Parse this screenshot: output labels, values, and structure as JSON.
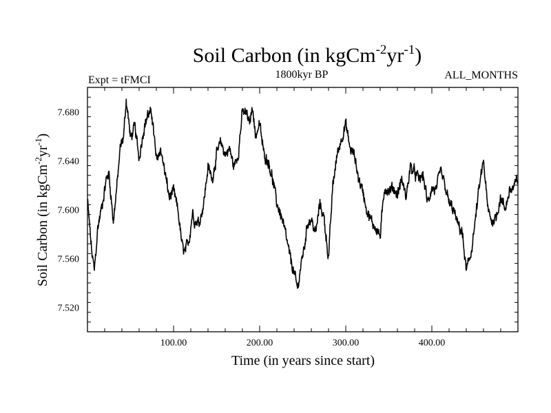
{
  "chart_data": {
    "type": "line",
    "title": "Soil Carbon (in kgCm",
    "title_sup1": "-2",
    "title_mid": "yr",
    "title_sup2": "-1",
    "title_end": ")",
    "subtitle_left": "Expt = tFMCI",
    "subtitle_center": "1800kyr BP",
    "subtitle_right": "ALL_MONTHS",
    "xlabel": "Time (in years since start)",
    "ylabel": "Soil Carbon (in kgCm",
    "ylabel_sup1": "-2",
    "ylabel_mid": "yr",
    "ylabel_sup2": "-1",
    "ylabel_end": ")",
    "xlim": [
      0,
      500
    ],
    "ylim": [
      7.5,
      7.7
    ],
    "x_major_ticks": [
      100,
      200,
      300,
      400
    ],
    "x_tick_labels": [
      "100.00",
      "200.00",
      "300.00",
      "400.00"
    ],
    "y_major_ticks": [
      7.52,
      7.56,
      7.6,
      7.64,
      7.68
    ],
    "y_tick_labels": [
      "7.520",
      "7.560",
      "7.600",
      "7.640",
      "7.680"
    ],
    "series": [
      {
        "name": "Soil Carbon",
        "color": "#000000",
        "x": [
          0,
          5,
          8,
          12,
          18,
          22,
          25,
          30,
          35,
          38,
          42,
          45,
          48,
          50,
          55,
          60,
          65,
          70,
          75,
          80,
          85,
          90,
          95,
          100,
          105,
          110,
          113,
          118,
          122,
          125,
          130,
          135,
          140,
          145,
          150,
          155,
          160,
          165,
          170,
          175,
          180,
          185,
          188,
          192,
          195,
          200,
          205,
          210,
          215,
          220,
          225,
          230,
          235,
          240,
          244,
          248,
          252,
          256,
          260,
          265,
          270,
          275,
          280,
          285,
          290,
          295,
          300,
          305,
          310,
          315,
          320,
          325,
          330,
          335,
          340,
          345,
          350,
          355,
          360,
          365,
          370,
          375,
          380,
          385,
          390,
          395,
          400,
          405,
          410,
          415,
          420,
          425,
          430,
          435,
          440,
          445,
          450,
          455,
          460,
          465,
          470,
          475,
          480,
          485,
          490,
          495,
          500
        ],
        "y": [
          7.608,
          7.565,
          7.55,
          7.585,
          7.608,
          7.625,
          7.63,
          7.59,
          7.625,
          7.65,
          7.66,
          7.69,
          7.672,
          7.658,
          7.668,
          7.642,
          7.665,
          7.678,
          7.678,
          7.64,
          7.65,
          7.63,
          7.61,
          7.615,
          7.6,
          7.57,
          7.565,
          7.575,
          7.598,
          7.59,
          7.59,
          7.605,
          7.635,
          7.625,
          7.645,
          7.655,
          7.645,
          7.65,
          7.635,
          7.645,
          7.68,
          7.678,
          7.67,
          7.685,
          7.66,
          7.67,
          7.645,
          7.64,
          7.625,
          7.605,
          7.595,
          7.58,
          7.562,
          7.548,
          7.535,
          7.555,
          7.57,
          7.59,
          7.592,
          7.58,
          7.605,
          7.592,
          7.56,
          7.62,
          7.645,
          7.658,
          7.67,
          7.65,
          7.645,
          7.625,
          7.615,
          7.598,
          7.59,
          7.585,
          7.578,
          7.618,
          7.615,
          7.618,
          7.612,
          7.625,
          7.61,
          7.635,
          7.63,
          7.625,
          7.628,
          7.605,
          7.618,
          7.615,
          7.632,
          7.62,
          7.605,
          7.6,
          7.588,
          7.582,
          7.55,
          7.562,
          7.588,
          7.618,
          7.64,
          7.6,
          7.59,
          7.595,
          7.61,
          7.6,
          7.615,
          7.618,
          7.625
        ]
      }
    ]
  }
}
